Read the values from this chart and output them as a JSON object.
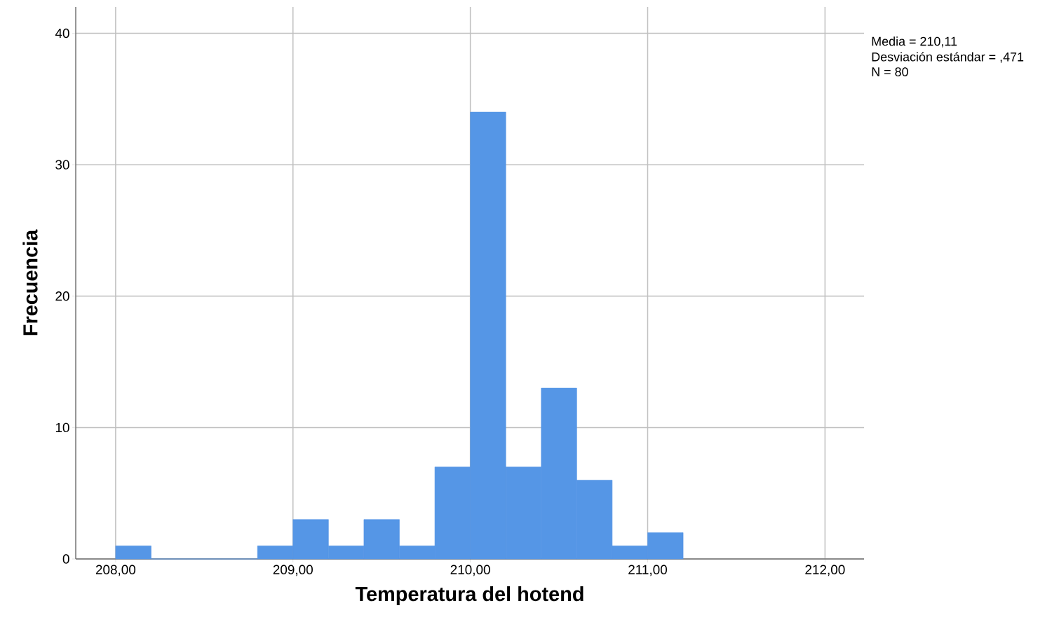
{
  "chart_data": {
    "type": "histogram",
    "xlabel": "Temperatura del hotend",
    "ylabel": "Frecuencia",
    "bins": [
      208.0,
      208.2,
      208.4,
      208.6,
      208.8,
      209.0,
      209.2,
      209.4,
      209.6,
      209.8,
      210.0,
      210.2,
      210.4,
      210.6,
      210.8,
      211.0,
      211.2
    ],
    "values": [
      1,
      0,
      0,
      0,
      1,
      3,
      1,
      3,
      1,
      7,
      34,
      7,
      13,
      6,
      1,
      2
    ],
    "color": "#5596e6",
    "xlim": [
      207.775,
      212.22
    ],
    "ylim": [
      0,
      42
    ],
    "xticks": [
      {
        "value": 208,
        "label": "208,00"
      },
      {
        "value": 209,
        "label": "209,00"
      },
      {
        "value": 210,
        "label": "210,00"
      },
      {
        "value": 211,
        "label": "211,00"
      },
      {
        "value": 212,
        "label": "212,00"
      }
    ],
    "yticks": [
      0,
      10,
      20,
      30,
      40
    ],
    "grid": true,
    "annotations": [
      "Media = 210,11",
      "Desviación estándar = ,471",
      "N = 80"
    ]
  }
}
